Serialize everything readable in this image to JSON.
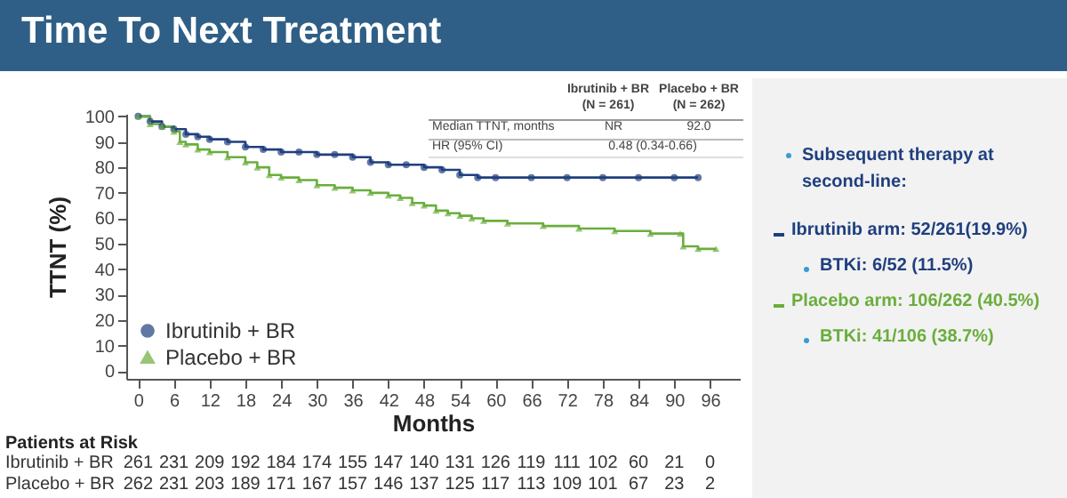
{
  "chart_data": {
    "type": "step",
    "title": "Time To Next Treatment",
    "xlabel": "Months",
    "ylabel": "TTNT (%)",
    "xlim": [
      -2,
      101
    ],
    "ylim": [
      -3,
      101
    ],
    "xticks": [
      0,
      6,
      12,
      18,
      24,
      30,
      36,
      42,
      48,
      54,
      60,
      66,
      72,
      78,
      84,
      90,
      96
    ],
    "yticks": [
      0,
      10,
      20,
      30,
      40,
      50,
      60,
      70,
      80,
      90,
      100
    ],
    "legend": "bottom left",
    "series": [
      {
        "name": "Ibrutinib + BR",
        "color": "#1f3f7f",
        "marker": "circle",
        "x": [
          0,
          2,
          4,
          6,
          8,
          10,
          12,
          15,
          18,
          21,
          24,
          27,
          30,
          33,
          36,
          39,
          42,
          45,
          48,
          51,
          54,
          57,
          60,
          66,
          72,
          78,
          84,
          90,
          94
        ],
        "values": [
          100,
          98,
          96,
          95,
          93,
          92,
          91,
          90,
          88,
          87,
          86,
          86,
          85,
          85,
          84,
          82,
          81,
          81,
          80,
          79,
          77,
          76,
          76,
          76,
          76,
          76,
          76,
          76,
          76
        ]
      },
      {
        "name": "Placebo + BR",
        "color": "#6aae3c",
        "marker": "triangle",
        "x": [
          0,
          2,
          4,
          6,
          7,
          8,
          10,
          12,
          15,
          18,
          20,
          22,
          24,
          27,
          30,
          33,
          36,
          39,
          42,
          44,
          46,
          48,
          50,
          52,
          54,
          56,
          58,
          62,
          68,
          74,
          80,
          86,
          91,
          91.5,
          94,
          97
        ],
        "values": [
          100,
          97,
          96,
          94,
          90,
          89,
          87,
          86,
          84,
          82,
          80,
          77,
          76,
          75,
          73,
          72,
          71,
          70,
          69,
          68,
          66,
          65,
          63,
          62,
          61,
          60,
          59,
          58,
          57,
          56,
          55,
          54,
          54,
          49,
          48,
          48
        ]
      }
    ],
    "annotations": [
      "Patients at Risk",
      "Ibrutinib + BR",
      "261 231 209 192 184 174 155 147 140 131 126 119 111 102 60 21 0",
      "Placebo + BR",
      "262 231 203 189 171 167 157 146 137 125 117 113 109 101 67 23 2",
      "Ibrutinib + BR",
      "(N = 261)",
      "Placebo + BR",
      "(N = 262)",
      "Median TTNT, months",
      "NR",
      "92.0",
      "HR (95% CI)",
      "0.48 (0.34-0.66)",
      "Subsequent therapy at second-line:",
      "Ibrutinib arm: 52/261(19.9%)",
      "BTKi: 6/52 (11.5%)",
      "Placebo arm: 106/262 (40.5%)",
      "BTKi: 41/106 (38.7%)"
    ]
  }
}
